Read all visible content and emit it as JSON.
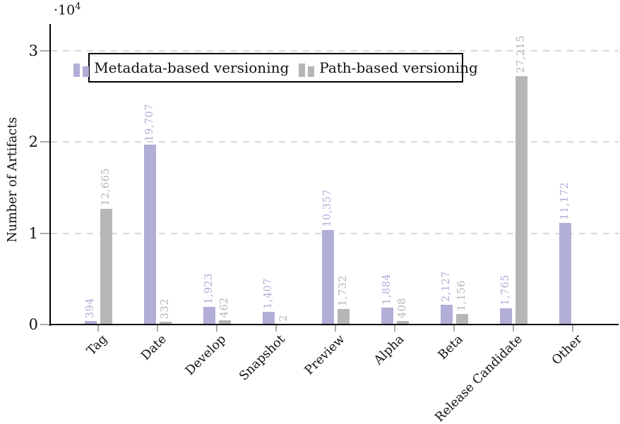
{
  "chart_data": {
    "type": "bar",
    "title": "",
    "xlabel": "",
    "ylabel": "Number of Artifacts",
    "y_scale": {
      "mantissa": "·10",
      "exponent": "4"
    },
    "categories": [
      "Tag",
      "Date",
      "Develop",
      "Snapshot",
      "Preview",
      "Alpha",
      "Beta",
      "Release Candidate",
      "Other"
    ],
    "series": [
      {
        "name": "Metadata-based versioning",
        "color": "#b1aed7",
        "values": [
          394,
          19707,
          1923,
          1407,
          10357,
          1884,
          2127,
          1765,
          11172
        ]
      },
      {
        "name": "Path-based versioning",
        "color": "#b6b6b6",
        "values": [
          12665,
          332,
          462,
          2,
          1732,
          408,
          1156,
          27215,
          null
        ]
      }
    ],
    "y_ticks": [
      "0",
      "1",
      "2",
      "3"
    ],
    "y_tick_values": [
      0,
      10000,
      20000,
      30000
    ],
    "ylim": [
      0,
      33000
    ],
    "grid": {
      "horizontal_dashed_at": [
        10000,
        20000,
        30000
      ],
      "color": "#d7d7d7"
    },
    "legend": {
      "position": "top-inside",
      "framed": true
    },
    "value_label_format": "thousands-comma",
    "axis_color": "#000000",
    "tick_color": "#ababab"
  }
}
